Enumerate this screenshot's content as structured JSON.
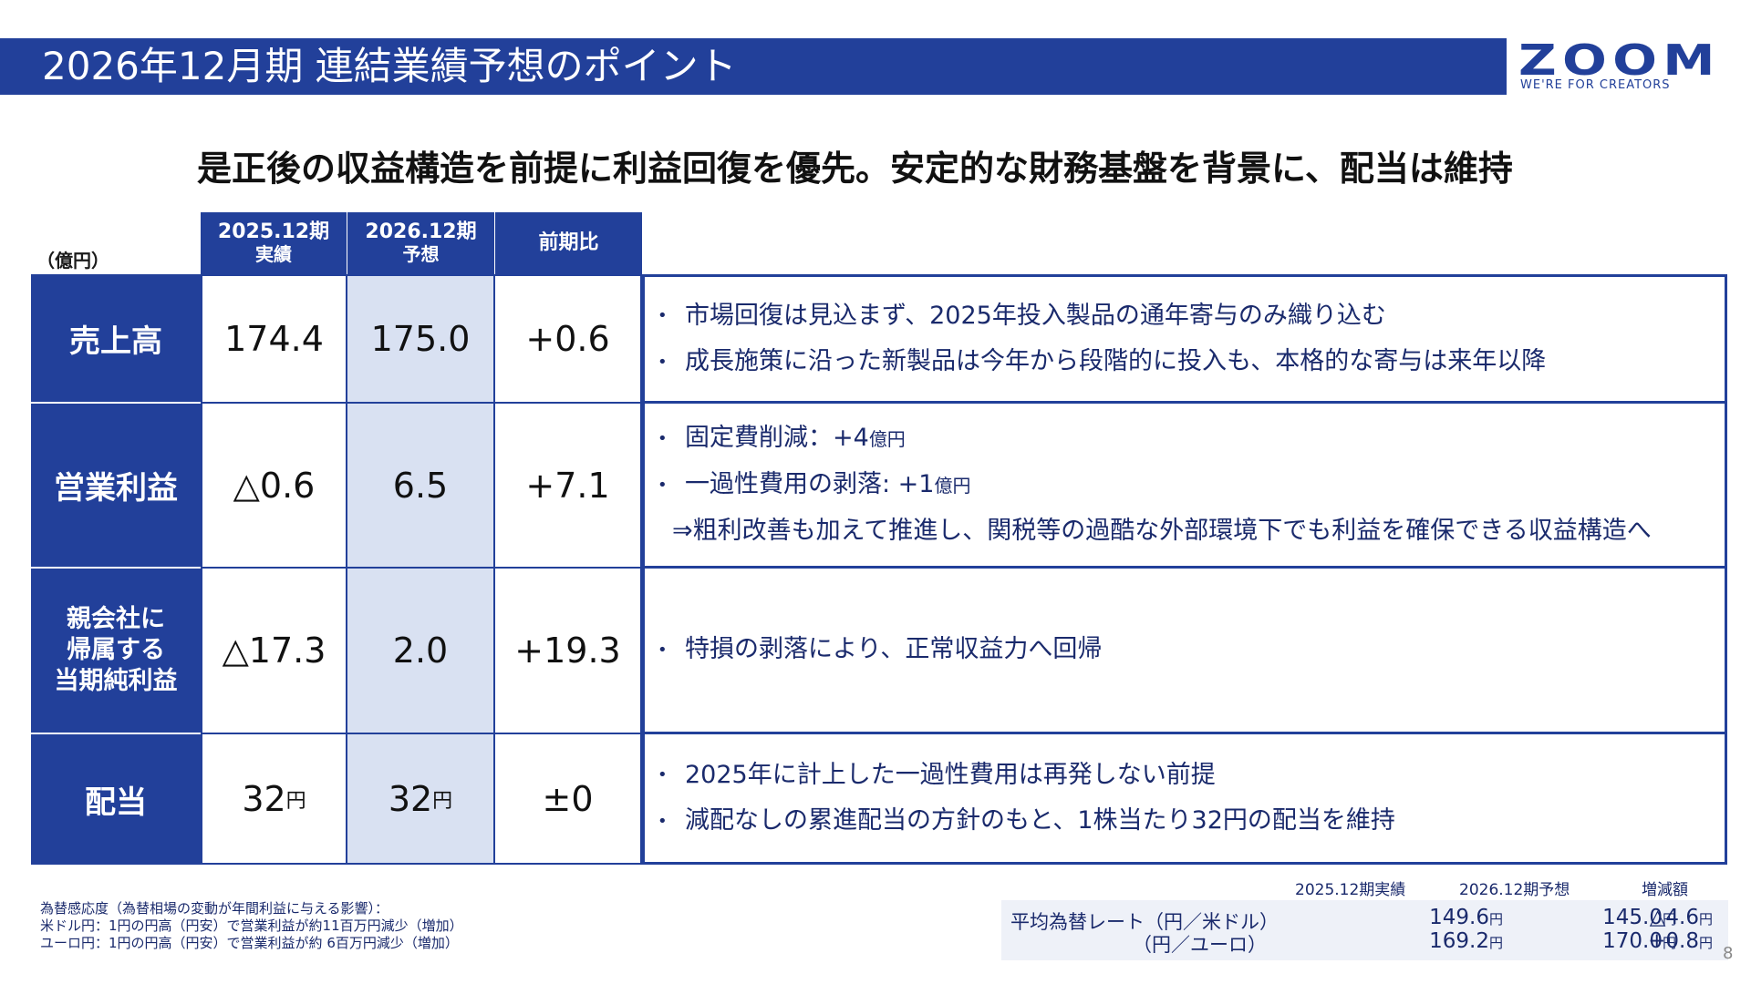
{
  "header": {
    "title": "2026年12月期 連結業績予想のポイント",
    "logo_text": "ZOOM",
    "logo_tagline": "WE'RE FOR CREATORS"
  },
  "headline": "是正後の収益構造を前提に利益回復を優先。安定的な財務基盤を背景に、配当は維持",
  "table": {
    "unit": "（億円）",
    "columns": [
      {
        "line1": "2025.12期",
        "line2": "実績"
      },
      {
        "line1": "2026.12期",
        "line2": "予想"
      },
      {
        "line1": "前期比",
        "line2": ""
      }
    ],
    "rows": [
      {
        "label": "売上高",
        "actual": "174.4",
        "forecast": "175.0",
        "change": "+0.6",
        "comments": [
          "市場回復は見込まず、2025年投入製品の通年寄与のみ織り込む",
          "成長施策に沿った新製品は今年から段階的に投入も、本格的な寄与は来年以降"
        ]
      },
      {
        "label": "営業利益",
        "actual": "△0.6",
        "forecast": "6.5",
        "change": "+7.1",
        "comments": [
          {
            "text": "固定費削減：+4",
            "unit": "億円"
          },
          {
            "text": "一過性費用の剥落: +1",
            "unit": "億円"
          }
        ],
        "note": "⇒粗利改善も加えて推進し、関税等の過酷な外部環境下でも利益を確保できる収益構造へ"
      },
      {
        "label_lines": [
          "親会社に",
          "帰属する",
          "当期純利益"
        ],
        "actual": "△17.3",
        "forecast": "2.0",
        "change": "+19.3",
        "comments": [
          "特損の剥落により、正常収益力へ回帰"
        ]
      },
      {
        "label": "配当",
        "actual": "32",
        "forecast": "32",
        "unit": "円",
        "change": "±0",
        "comments": [
          "2025年に計上した一過性費用は再発しない前提",
          "減配なしの累進配当の方針のもと、1株当たり32円の配当を維持"
        ]
      }
    ]
  },
  "footnote": {
    "lines": [
      "為替感応度（為替相場の変動が年間利益に与える影響）：",
      "米ドル円：1円の円高（円安）で営業利益が約11百万円減少（増加）",
      "ユーロ円：1円の円高（円安）で営業利益が約 6百万円減少（増加）"
    ]
  },
  "fx": {
    "headers": [
      "2025.12期実績",
      "2026.12期予想",
      "増減額"
    ],
    "label_line1": "平均為替レート（円／米ドル）",
    "label_line2": "（円／ユーロ）",
    "unit": "円",
    "usd": {
      "actual": "149.6",
      "forecast": "145.0",
      "change": "△4.6"
    },
    "eur": {
      "actual": "169.2",
      "forecast": "170.0",
      "change": "+0.8"
    }
  },
  "page_number": "8",
  "colors": {
    "navy": "#22409a",
    "shade": "#d9e1f2",
    "text": "#1a2a6c"
  }
}
